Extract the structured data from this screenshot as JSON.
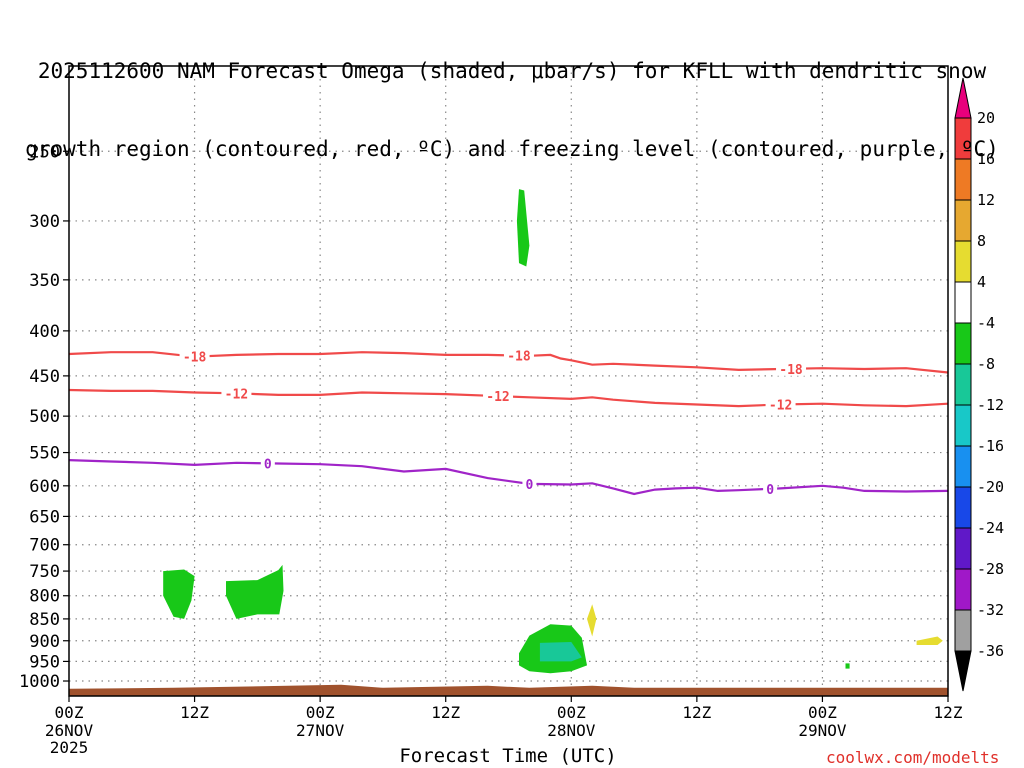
{
  "chart_data": {
    "type": "contour",
    "title_lines": [
      "2025112600 NAM Forecast Omega (shaded, μbar/s) for KFLL with dendritic snow",
      "growth region (contoured, red, ºC) and freezing level (contoured, purple, ºC)"
    ],
    "xlabel": "Forecast Time (UTC)",
    "credit": "coolwx.com/modelts",
    "x_range_hours": [
      0,
      84
    ],
    "x_ticks": [
      {
        "h": 0,
        "line1": "00Z",
        "line2": "26NOV",
        "line3": "2025"
      },
      {
        "h": 12,
        "line1": "12Z",
        "line2": "",
        "line3": ""
      },
      {
        "h": 24,
        "line1": "00Z",
        "line2": "27NOV",
        "line3": ""
      },
      {
        "h": 36,
        "line1": "12Z",
        "line2": "",
        "line3": ""
      },
      {
        "h": 48,
        "line1": "00Z",
        "line2": "28NOV",
        "line3": ""
      },
      {
        "h": 60,
        "line1": "12Z",
        "line2": "",
        "line3": ""
      },
      {
        "h": 72,
        "line1": "00Z",
        "line2": "29NOV",
        "line3": ""
      },
      {
        "h": 84,
        "line1": "12Z",
        "line2": "",
        "line3": ""
      }
    ],
    "y_scale": "log-pressure",
    "y_range_hpa": [
      1040,
      200
    ],
    "y_ticks": [
      250,
      300,
      350,
      400,
      450,
      500,
      550,
      600,
      650,
      700,
      750,
      800,
      850,
      900,
      950,
      1000
    ],
    "grid": true,
    "colorbar": {
      "labels": [
        "20",
        "16",
        "12",
        "8",
        "4",
        "-4",
        "-8",
        "-12",
        "-16",
        "-20",
        "-24",
        "-28",
        "-32",
        "-36"
      ],
      "colors": [
        "#e8007c",
        "#f03c3c",
        "#ee7a24",
        "#e6a830",
        "#e6dc30",
        "#ffffff",
        "#18c818",
        "#18c898",
        "#18c8c8",
        "#1890f0",
        "#1848e8",
        "#6018c8",
        "#a018c8",
        "#a0a0a0",
        "#000000"
      ]
    },
    "contours": [
      {
        "value": -18,
        "label": "-18",
        "color": "#f04a4a",
        "points": [
          [
            0,
            425
          ],
          [
            4,
            423
          ],
          [
            8,
            423
          ],
          [
            12,
            428
          ],
          [
            16,
            426
          ],
          [
            20,
            425
          ],
          [
            24,
            425
          ],
          [
            28,
            423
          ],
          [
            32,
            424
          ],
          [
            36,
            426
          ],
          [
            40,
            426
          ],
          [
            44,
            427
          ],
          [
            46,
            426
          ],
          [
            47,
            430
          ],
          [
            48,
            432
          ],
          [
            50,
            437
          ],
          [
            52,
            436
          ],
          [
            56,
            438
          ],
          [
            60,
            440
          ],
          [
            64,
            443
          ],
          [
            68,
            442
          ],
          [
            72,
            441
          ],
          [
            76,
            442
          ],
          [
            80,
            441
          ],
          [
            84,
            446
          ]
        ],
        "label_h": [
          12,
          43,
          69
        ]
      },
      {
        "value": -12,
        "label": "-12",
        "color": "#f04a4a",
        "points": [
          [
            0,
            467
          ],
          [
            4,
            468
          ],
          [
            8,
            468
          ],
          [
            12,
            470
          ],
          [
            16,
            471
          ],
          [
            20,
            473
          ],
          [
            24,
            473
          ],
          [
            28,
            470
          ],
          [
            32,
            471
          ],
          [
            36,
            472
          ],
          [
            40,
            474
          ],
          [
            44,
            476
          ],
          [
            48,
            478
          ],
          [
            50,
            476
          ],
          [
            52,
            479
          ],
          [
            56,
            483
          ],
          [
            60,
            485
          ],
          [
            64,
            487
          ],
          [
            68,
            485
          ],
          [
            72,
            484
          ],
          [
            76,
            486
          ],
          [
            80,
            487
          ],
          [
            84,
            484
          ]
        ],
        "label_h": [
          16,
          41,
          68
        ]
      },
      {
        "value": 0,
        "label": "0",
        "color": "#a024c8",
        "points": [
          [
            0,
            561
          ],
          [
            4,
            563
          ],
          [
            8,
            565
          ],
          [
            12,
            568
          ],
          [
            16,
            565
          ],
          [
            20,
            566
          ],
          [
            24,
            567
          ],
          [
            28,
            570
          ],
          [
            32,
            578
          ],
          [
            36,
            574
          ],
          [
            40,
            588
          ],
          [
            44,
            597
          ],
          [
            48,
            598
          ],
          [
            50,
            596
          ],
          [
            52,
            604
          ],
          [
            54,
            613
          ],
          [
            56,
            606
          ],
          [
            58,
            604
          ],
          [
            60,
            603
          ],
          [
            62,
            608
          ],
          [
            64,
            607
          ],
          [
            68,
            604
          ],
          [
            72,
            600
          ],
          [
            74,
            603
          ],
          [
            76,
            608
          ],
          [
            80,
            609
          ],
          [
            84,
            608
          ]
        ],
        "label_h": [
          19,
          44,
          67
        ]
      }
    ],
    "shaded_regions": [
      {
        "range": "-8 to -4",
        "color": "#18c818",
        "polygon": [
          [
            9,
            750
          ],
          [
            11,
            747
          ],
          [
            12,
            760
          ],
          [
            11.7,
            810
          ],
          [
            11,
            850
          ],
          [
            10,
            845
          ],
          [
            9,
            800
          ]
        ]
      },
      {
        "range": "-8 to -4",
        "color": "#18c818",
        "polygon": [
          [
            15,
            770
          ],
          [
            18,
            768
          ],
          [
            20,
            748
          ],
          [
            20.4,
            738
          ],
          [
            20.5,
            790
          ],
          [
            20.1,
            840
          ],
          [
            18,
            840
          ],
          [
            16,
            850
          ],
          [
            15,
            800
          ]
        ]
      },
      {
        "range": "-8 to -4",
        "color": "#18c818",
        "polygon": [
          [
            43,
            276
          ],
          [
            43.5,
            277
          ],
          [
            44,
            320
          ],
          [
            43.7,
            338
          ],
          [
            43,
            335
          ],
          [
            42.8,
            300
          ]
        ]
      },
      {
        "range": "-8 to -4",
        "color": "#18c818",
        "polygon": [
          [
            43,
            930
          ],
          [
            44,
            888
          ],
          [
            46,
            862
          ],
          [
            48,
            865
          ],
          [
            49,
            893
          ],
          [
            49.5,
            960
          ],
          [
            48,
            975
          ],
          [
            46,
            980
          ],
          [
            44,
            975
          ],
          [
            43,
            960
          ]
        ]
      },
      {
        "range": "-12 to -8",
        "color": "#18c898",
        "polygon": [
          [
            45,
            905
          ],
          [
            48,
            903
          ],
          [
            49,
            940
          ],
          [
            48,
            950
          ],
          [
            45,
            950
          ]
        ]
      },
      {
        "range": "-8 to -4",
        "color": "#18c818",
        "polygon": [
          [
            74.2,
            955
          ],
          [
            74.6,
            955
          ],
          [
            74.6,
            968
          ],
          [
            74.2,
            968
          ]
        ]
      },
      {
        "range": "4 to 8",
        "color": "#e6dc30",
        "polygon": [
          [
            49.5,
            850
          ],
          [
            50,
            818
          ],
          [
            50.4,
            850
          ],
          [
            50,
            890
          ]
        ]
      },
      {
        "range": "4 to 8",
        "color": "#e6dc30",
        "polygon": [
          [
            81,
            900
          ],
          [
            83,
            890
          ],
          [
            83.5,
            900
          ],
          [
            83,
            910
          ],
          [
            81,
            910
          ]
        ]
      }
    ],
    "terrain": {
      "color": "#a0522d",
      "top_hpa": 1018
    }
  }
}
